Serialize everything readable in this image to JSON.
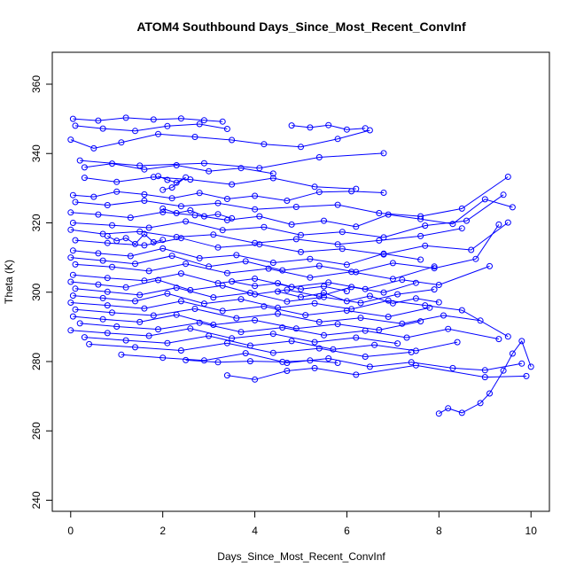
{
  "chart_data": {
    "type": "scatter",
    "title": "ATOM4 Southbound Days_Since_Most_Recent_ConvInf",
    "xlabel": "Days_Since_Most_Recent_ConvInf",
    "ylabel": "Theta (K)",
    "xlim": [
      -0.4,
      10.4
    ],
    "ylim": [
      236.8,
      369.2
    ],
    "xticks": [
      0,
      2,
      4,
      6,
      8,
      10
    ],
    "yticks": [
      240,
      260,
      280,
      300,
      320,
      340,
      360
    ],
    "grid": false,
    "legend": "none",
    "series_color": "#0000ff",
    "marker": "open-circle",
    "connected": true,
    "approximate": true,
    "series": [
      {
        "x": [
          0.05,
          0.6,
          1.2,
          1.8,
          2.4,
          2.9,
          3.3
        ],
        "y": [
          350,
          349.5,
          350.3,
          349.8,
          350.1,
          349.6,
          349.2
        ]
      },
      {
        "x": [
          0.1,
          0.7,
          1.4,
          2.1,
          2.8,
          3.4
        ],
        "y": [
          348,
          347.2,
          346.5,
          347.9,
          348.5,
          347.1
        ]
      },
      {
        "x": [
          0.0,
          0.5,
          1.1,
          1.9,
          2.7,
          3.5,
          4.2,
          5.0,
          5.8,
          6.5
        ],
        "y": [
          344,
          341.5,
          343.2,
          345.6,
          344.8,
          343.9,
          342.7,
          341.9,
          344.2,
          346.7
        ]
      },
      {
        "x": [
          4.8,
          5.2,
          5.6,
          6.0,
          6.4
        ],
        "y": [
          348.1,
          347.5,
          348.2,
          346.9,
          347.3
        ]
      },
      {
        "x": [
          0.2,
          1.5,
          2.9,
          4.1,
          5.4,
          6.8
        ],
        "y": [
          338,
          336.5,
          337.2,
          335.8,
          338.9,
          340.1
        ]
      },
      {
        "x": [
          0.3,
          1.0,
          1.8,
          2.6,
          3.5,
          4.4,
          5.3,
          6.2
        ],
        "y": [
          333,
          331.8,
          333.2,
          332.5,
          331.1,
          332.9,
          330.4,
          329.8
        ]
      },
      {
        "x": [
          1.9,
          2.1,
          2.3,
          2.5,
          2.2,
          2.0
        ],
        "y": [
          333.5,
          332.4,
          331.6,
          333.1,
          330.2,
          329.5
        ]
      },
      {
        "x": [
          0.05,
          0.5,
          1.0,
          1.6,
          2.2,
          2.8,
          3.4,
          4.0,
          4.7,
          5.4,
          6.1,
          6.8
        ],
        "y": [
          328,
          327.5,
          329,
          328.2,
          327.1,
          328.6,
          326.9,
          327.8,
          326.4,
          328.9,
          329.1,
          328.7
        ]
      },
      {
        "x": [
          0.1,
          0.8,
          1.6,
          2.4,
          3.2,
          4.0,
          4.9,
          5.8,
          6.7,
          7.6,
          8.5,
          9.5
        ],
        "y": [
          326,
          325.1,
          326.4,
          324.8,
          325.7,
          323.9,
          324.6,
          325.2,
          322.8,
          321.9,
          324.1,
          333.3
        ]
      },
      {
        "x": [
          0.0,
          0.6,
          1.3,
          2.0,
          2.7,
          3.4,
          4.1,
          4.8,
          5.5,
          6.2,
          6.9,
          7.6,
          8.3,
          9.0,
          9.6
        ],
        "y": [
          323,
          322.4,
          321.5,
          323.1,
          322.2,
          320.8,
          321.9,
          319.5,
          320.6,
          318.9,
          322.4,
          321.1,
          319.7,
          326.8,
          324.5
        ]
      },
      {
        "x": [
          0.05,
          0.9,
          1.7,
          2.5,
          3.3,
          4.2,
          5.0,
          5.9,
          6.8,
          7.7,
          8.6,
          9.4
        ],
        "y": [
          320,
          319.3,
          318.6,
          320.4,
          317.9,
          318.8,
          316.5,
          317.4,
          315.8,
          319.2,
          320.6,
          328.1
        ]
      },
      {
        "x": [
          0.0,
          0.7,
          1.5,
          2.3,
          3.1,
          4.0,
          4.9,
          5.8,
          6.7,
          7.6,
          8.5
        ],
        "y": [
          318,
          316.8,
          317.5,
          315.9,
          316.6,
          314.2,
          315.3,
          313.8,
          314.9,
          316.2,
          318.4
        ]
      },
      {
        "x": [
          0.1,
          0.8,
          1.6,
          2.4,
          3.2,
          4.1,
          5.0,
          5.9,
          6.8,
          7.7,
          8.7,
          9.5
        ],
        "y": [
          315,
          314.2,
          313.5,
          315.6,
          312.9,
          313.8,
          311.6,
          312.5,
          310.9,
          313.4,
          312.2,
          320.1
        ]
      },
      {
        "x": [
          0.05,
          0.6,
          1.3,
          2.0,
          2.8,
          3.6,
          4.4,
          5.2,
          6.0,
          6.8,
          7.6
        ],
        "y": [
          312,
          311.2,
          310.4,
          312.6,
          309.8,
          310.7,
          308.5,
          309.6,
          307.9,
          311.1,
          309.4
        ]
      },
      {
        "x": [
          0.0,
          0.7,
          1.4,
          2.2,
          3.0,
          3.8,
          4.6,
          5.4,
          6.2,
          7.0,
          7.9,
          8.8,
          9.3
        ],
        "y": [
          310,
          309.1,
          308.2,
          310.5,
          307.4,
          308.9,
          306.3,
          307.6,
          305.8,
          308.4,
          306.9,
          309.6,
          319.5
        ]
      },
      {
        "x": [
          0.1,
          0.9,
          1.7,
          2.5,
          3.4,
          4.3,
          5.2,
          6.1,
          7.0,
          7.9
        ],
        "y": [
          308,
          307.3,
          306.1,
          308.2,
          305.5,
          306.8,
          304.2,
          305.9,
          303.8,
          307.4
        ]
      },
      {
        "x": [
          0.05,
          0.8,
          1.6,
          2.4,
          3.2,
          4.0,
          4.8,
          5.6,
          6.4,
          7.2,
          8.0,
          9.1
        ],
        "y": [
          305,
          304.1,
          303.3,
          305.4,
          302.6,
          303.9,
          301.5,
          302.8,
          300.9,
          303.6,
          302.1,
          307.5
        ]
      },
      {
        "x": [
          0.0,
          0.6,
          1.2,
          1.9,
          2.6,
          3.3,
          4.0,
          4.7,
          5.4,
          6.1,
          6.8,
          7.5
        ],
        "y": [
          303,
          302.2,
          301.4,
          303.5,
          300.6,
          301.9,
          299.4,
          300.7,
          298.8,
          301.5,
          299.9,
          302.7
        ]
      },
      {
        "x": [
          0.1,
          0.8,
          1.5,
          2.3,
          3.1,
          3.9,
          4.7,
          5.5,
          6.3,
          7.1,
          7.9
        ],
        "y": [
          301,
          300.1,
          299.2,
          301.3,
          298.5,
          299.8,
          297.3,
          298.6,
          296.9,
          299.4,
          300.8
        ]
      },
      {
        "x": [
          0.05,
          0.7,
          1.4,
          2.1,
          2.9,
          3.7,
          4.5,
          5.3,
          6.1,
          6.9,
          7.7,
          8.5,
          9.5
        ],
        "y": [
          299,
          298.3,
          297.4,
          299.6,
          296.7,
          298.0,
          295.5,
          296.8,
          295.1,
          297.6,
          296.2,
          294.8,
          287.2
        ]
      },
      {
        "x": [
          0.0,
          0.8,
          1.6,
          2.4,
          3.3,
          4.2,
          5.1,
          6.0,
          6.9,
          7.8
        ],
        "y": [
          297,
          296.2,
          295.3,
          297.4,
          294.6,
          295.9,
          293.4,
          294.7,
          292.9,
          295.5
        ]
      },
      {
        "x": [
          0.1,
          0.9,
          1.8,
          2.7,
          3.6,
          4.5,
          5.4,
          6.3,
          7.2,
          8.1,
          8.9
        ],
        "y": [
          295,
          294.1,
          293.3,
          295.2,
          292.5,
          293.8,
          291.4,
          292.6,
          290.9,
          293.3,
          291.8
        ]
      },
      {
        "x": [
          0.05,
          0.7,
          1.5,
          2.3,
          3.1,
          4.0,
          4.9,
          5.8,
          6.7,
          7.6
        ],
        "y": [
          293,
          292.2,
          291.4,
          293.5,
          290.6,
          291.9,
          289.5,
          290.8,
          289.1,
          291.6
        ]
      },
      {
        "x": [
          0.2,
          1.0,
          1.9,
          2.8,
          3.7,
          4.6,
          5.5,
          6.4,
          7.3,
          8.2,
          9.3
        ],
        "y": [
          291,
          290.1,
          289.3,
          291.2,
          288.5,
          289.8,
          287.6,
          288.9,
          286.9,
          289.4,
          286.5
        ]
      },
      {
        "x": [
          0.0,
          0.8,
          1.7,
          2.6,
          3.5,
          4.4,
          5.3,
          6.2,
          7.1
        ],
        "y": [
          289,
          288.2,
          287.4,
          289.5,
          286.7,
          288.0,
          285.6,
          286.9,
          285.2
        ]
      },
      {
        "x": [
          0.3,
          1.2,
          2.1,
          3.0,
          3.9,
          4.8,
          5.7,
          6.6,
          7.5,
          8.4
        ],
        "y": [
          287,
          286.1,
          285.3,
          287.4,
          284.6,
          285.9,
          283.5,
          284.8,
          283.1,
          285.6
        ]
      },
      {
        "x": [
          0.4,
          1.4,
          2.4,
          3.4,
          4.4,
          5.4,
          6.4,
          7.4
        ],
        "y": [
          285,
          284.1,
          283.2,
          285.3,
          282.5,
          283.8,
          281.4,
          282.7
        ]
      },
      {
        "x": [
          1.1,
          2.0,
          2.9,
          3.8,
          4.7,
          5.6,
          6.5,
          7.4,
          8.3,
          9.0,
          9.8
        ],
        "y": [
          282,
          281.1,
          280.3,
          282.4,
          279.6,
          280.9,
          278.5,
          279.8,
          278.1,
          277.5,
          279.4
        ]
      },
      {
        "x": [
          2.5,
          3.2,
          3.9,
          4.6,
          5.2,
          5.8
        ],
        "y": [
          280.4,
          279.8,
          280.1,
          279.9,
          280.3,
          279.6
        ]
      },
      {
        "x": [
          3.4,
          4.0,
          4.7,
          5.3,
          6.2,
          7.5,
          9.0,
          9.9
        ],
        "y": [
          276,
          274.8,
          277.3,
          278.1,
          276.2,
          278.9,
          275.5,
          275.8
        ]
      },
      {
        "x": [
          8.0,
          8.2,
          8.5,
          8.9,
          9.1,
          9.4,
          9.6,
          9.8,
          10.0
        ],
        "y": [
          265,
          266.5,
          265.2,
          268,
          270.8,
          277.4,
          282.3,
          285.9,
          278.5
        ]
      },
      {
        "x": [
          0.3,
          0.9,
          1.6,
          2.3,
          3.0,
          3.7,
          4.4
        ],
        "y": [
          336,
          337.1,
          335.4,
          336.6,
          334.9,
          335.8,
          334.2
        ]
      },
      {
        "x": [
          2.0,
          2.3,
          2.6,
          2.9,
          3.2,
          3.5
        ],
        "y": [
          324.1,
          322.8,
          323.6,
          321.9,
          322.5,
          321.3
        ]
      },
      {
        "x": [
          0.8,
          1.0,
          1.2,
          1.4,
          1.6,
          1.8,
          2.0
        ],
        "y": [
          316.2,
          314.8,
          315.6,
          313.9,
          316.8,
          314.4,
          315.1
        ]
      },
      {
        "x": [
          4.5,
          5.0,
          5.5,
          6.0,
          6.5,
          7.0,
          7.5,
          8.0
        ],
        "y": [
          300.2,
          298.6,
          299.8,
          297.4,
          298.9,
          296.8,
          298.2,
          297.1
        ]
      },
      {
        "x": [
          3.5,
          4.0,
          4.5,
          5.0,
          5.5,
          6.0
        ],
        "y": [
          303.1,
          301.8,
          302.6,
          300.9,
          301.7,
          300.3
        ]
      }
    ]
  }
}
